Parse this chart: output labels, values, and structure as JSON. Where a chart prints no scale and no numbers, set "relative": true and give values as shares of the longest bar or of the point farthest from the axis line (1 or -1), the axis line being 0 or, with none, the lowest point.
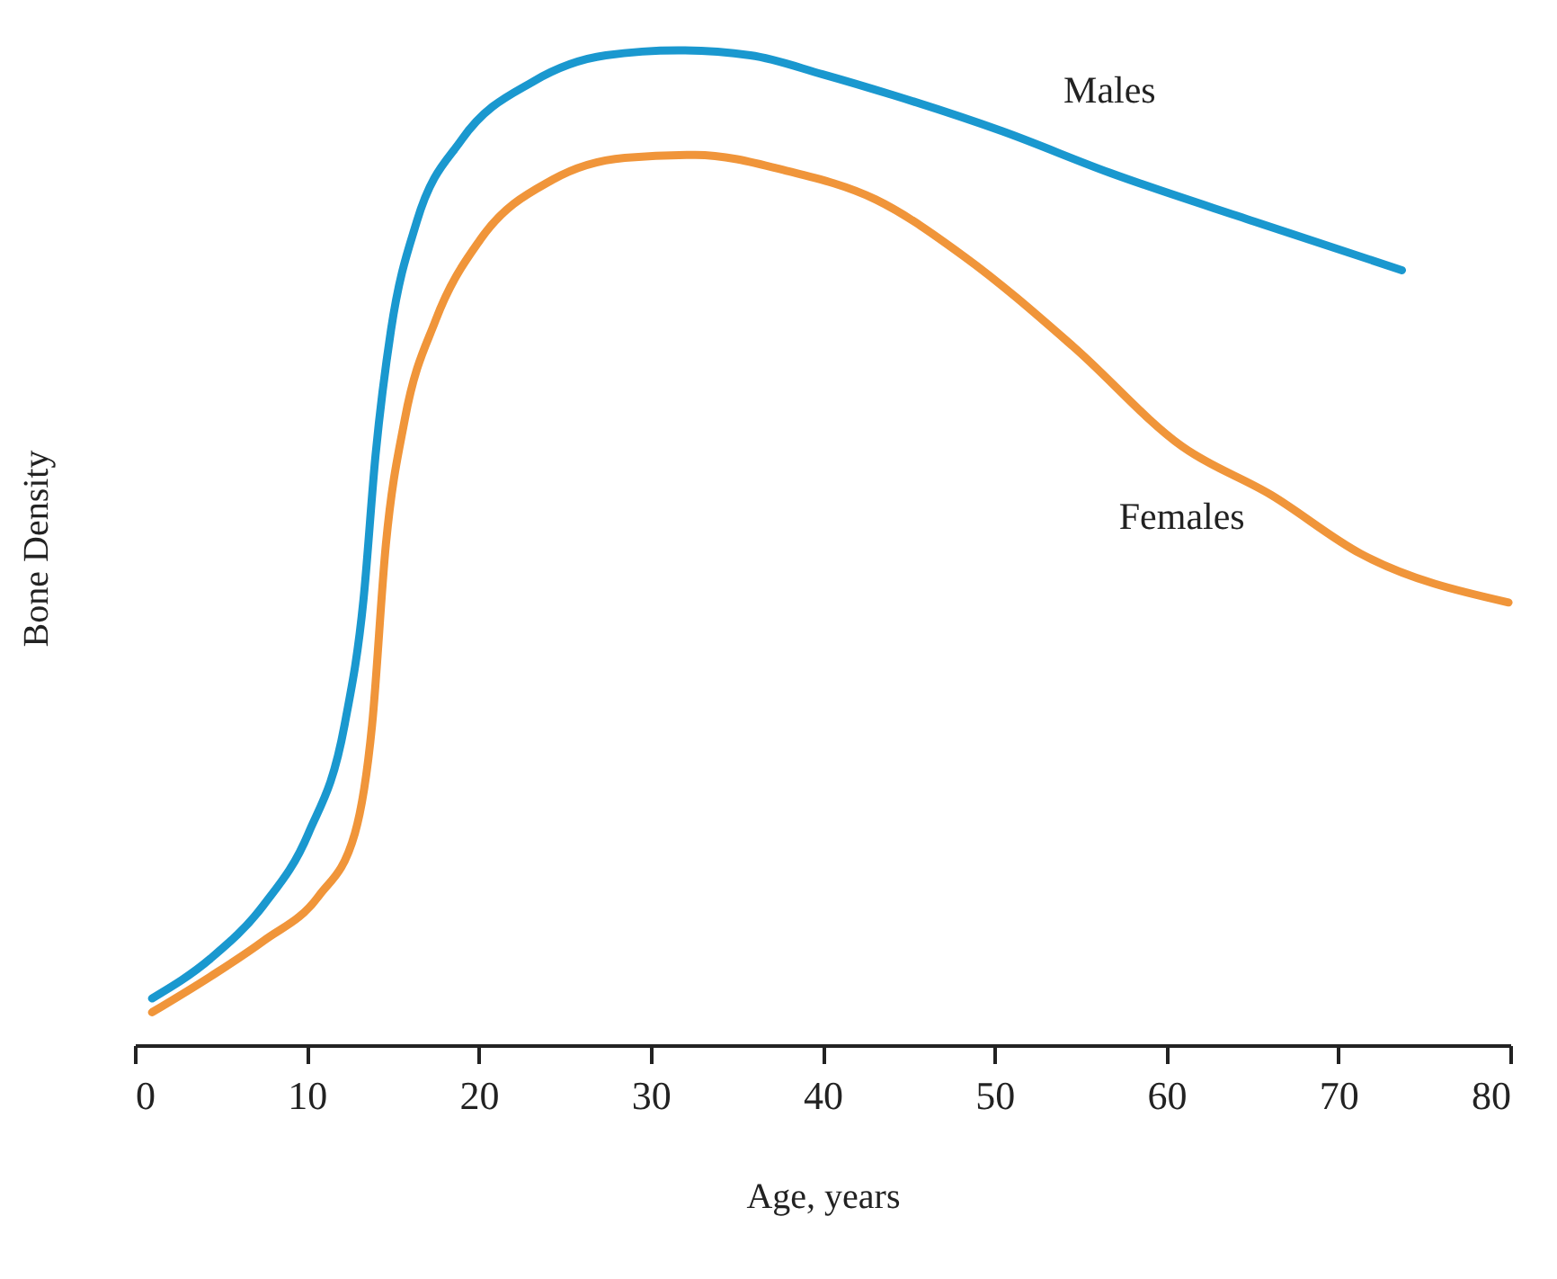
{
  "chart_data": {
    "type": "line",
    "relative": true,
    "xlabel": "Age, years",
    "ylabel": "Bone Density",
    "xlim": [
      0,
      80
    ],
    "xticks": [
      0,
      10,
      20,
      30,
      40,
      50,
      60,
      70,
      80
    ],
    "grid": false,
    "legend": false,
    "marker": "none",
    "line_style": "solid",
    "series": [
      {
        "name": "Males",
        "color": "#1a98cf",
        "x": [
          1,
          4.4,
          7.5,
          10.1,
          12.2,
          13.3,
          14,
          14.9,
          16.4,
          19,
          23.2,
          27.4,
          31.6,
          35.8,
          40,
          44.1,
          50.4,
          56.7,
          65.1,
          73.7
        ],
        "values": [
          0.047,
          0.087,
          0.141,
          0.213,
          0.322,
          0.448,
          0.593,
          0.719,
          0.828,
          0.91,
          0.969,
          0.995,
          1,
          0.995,
          0.976,
          0.955,
          0.919,
          0.877,
          0.828,
          0.779
        ]
      },
      {
        "name": "Females",
        "color": "#f0953a",
        "x": [
          1,
          4.4,
          7.5,
          10.7,
          12.8,
          13.8,
          14.6,
          15.7,
          17.5,
          20.1,
          24.3,
          28.5,
          32.6,
          37.9,
          43.1,
          48.3,
          54.6,
          60.9,
          66.1,
          71.3,
          79.9
        ],
        "values": [
          0.033,
          0.069,
          0.105,
          0.15,
          0.213,
          0.322,
          0.503,
          0.629,
          0.729,
          0.81,
          0.87,
          0.892,
          0.895,
          0.879,
          0.85,
          0.792,
          0.702,
          0.602,
          0.553,
          0.494,
          0.445
        ]
      }
    ]
  }
}
